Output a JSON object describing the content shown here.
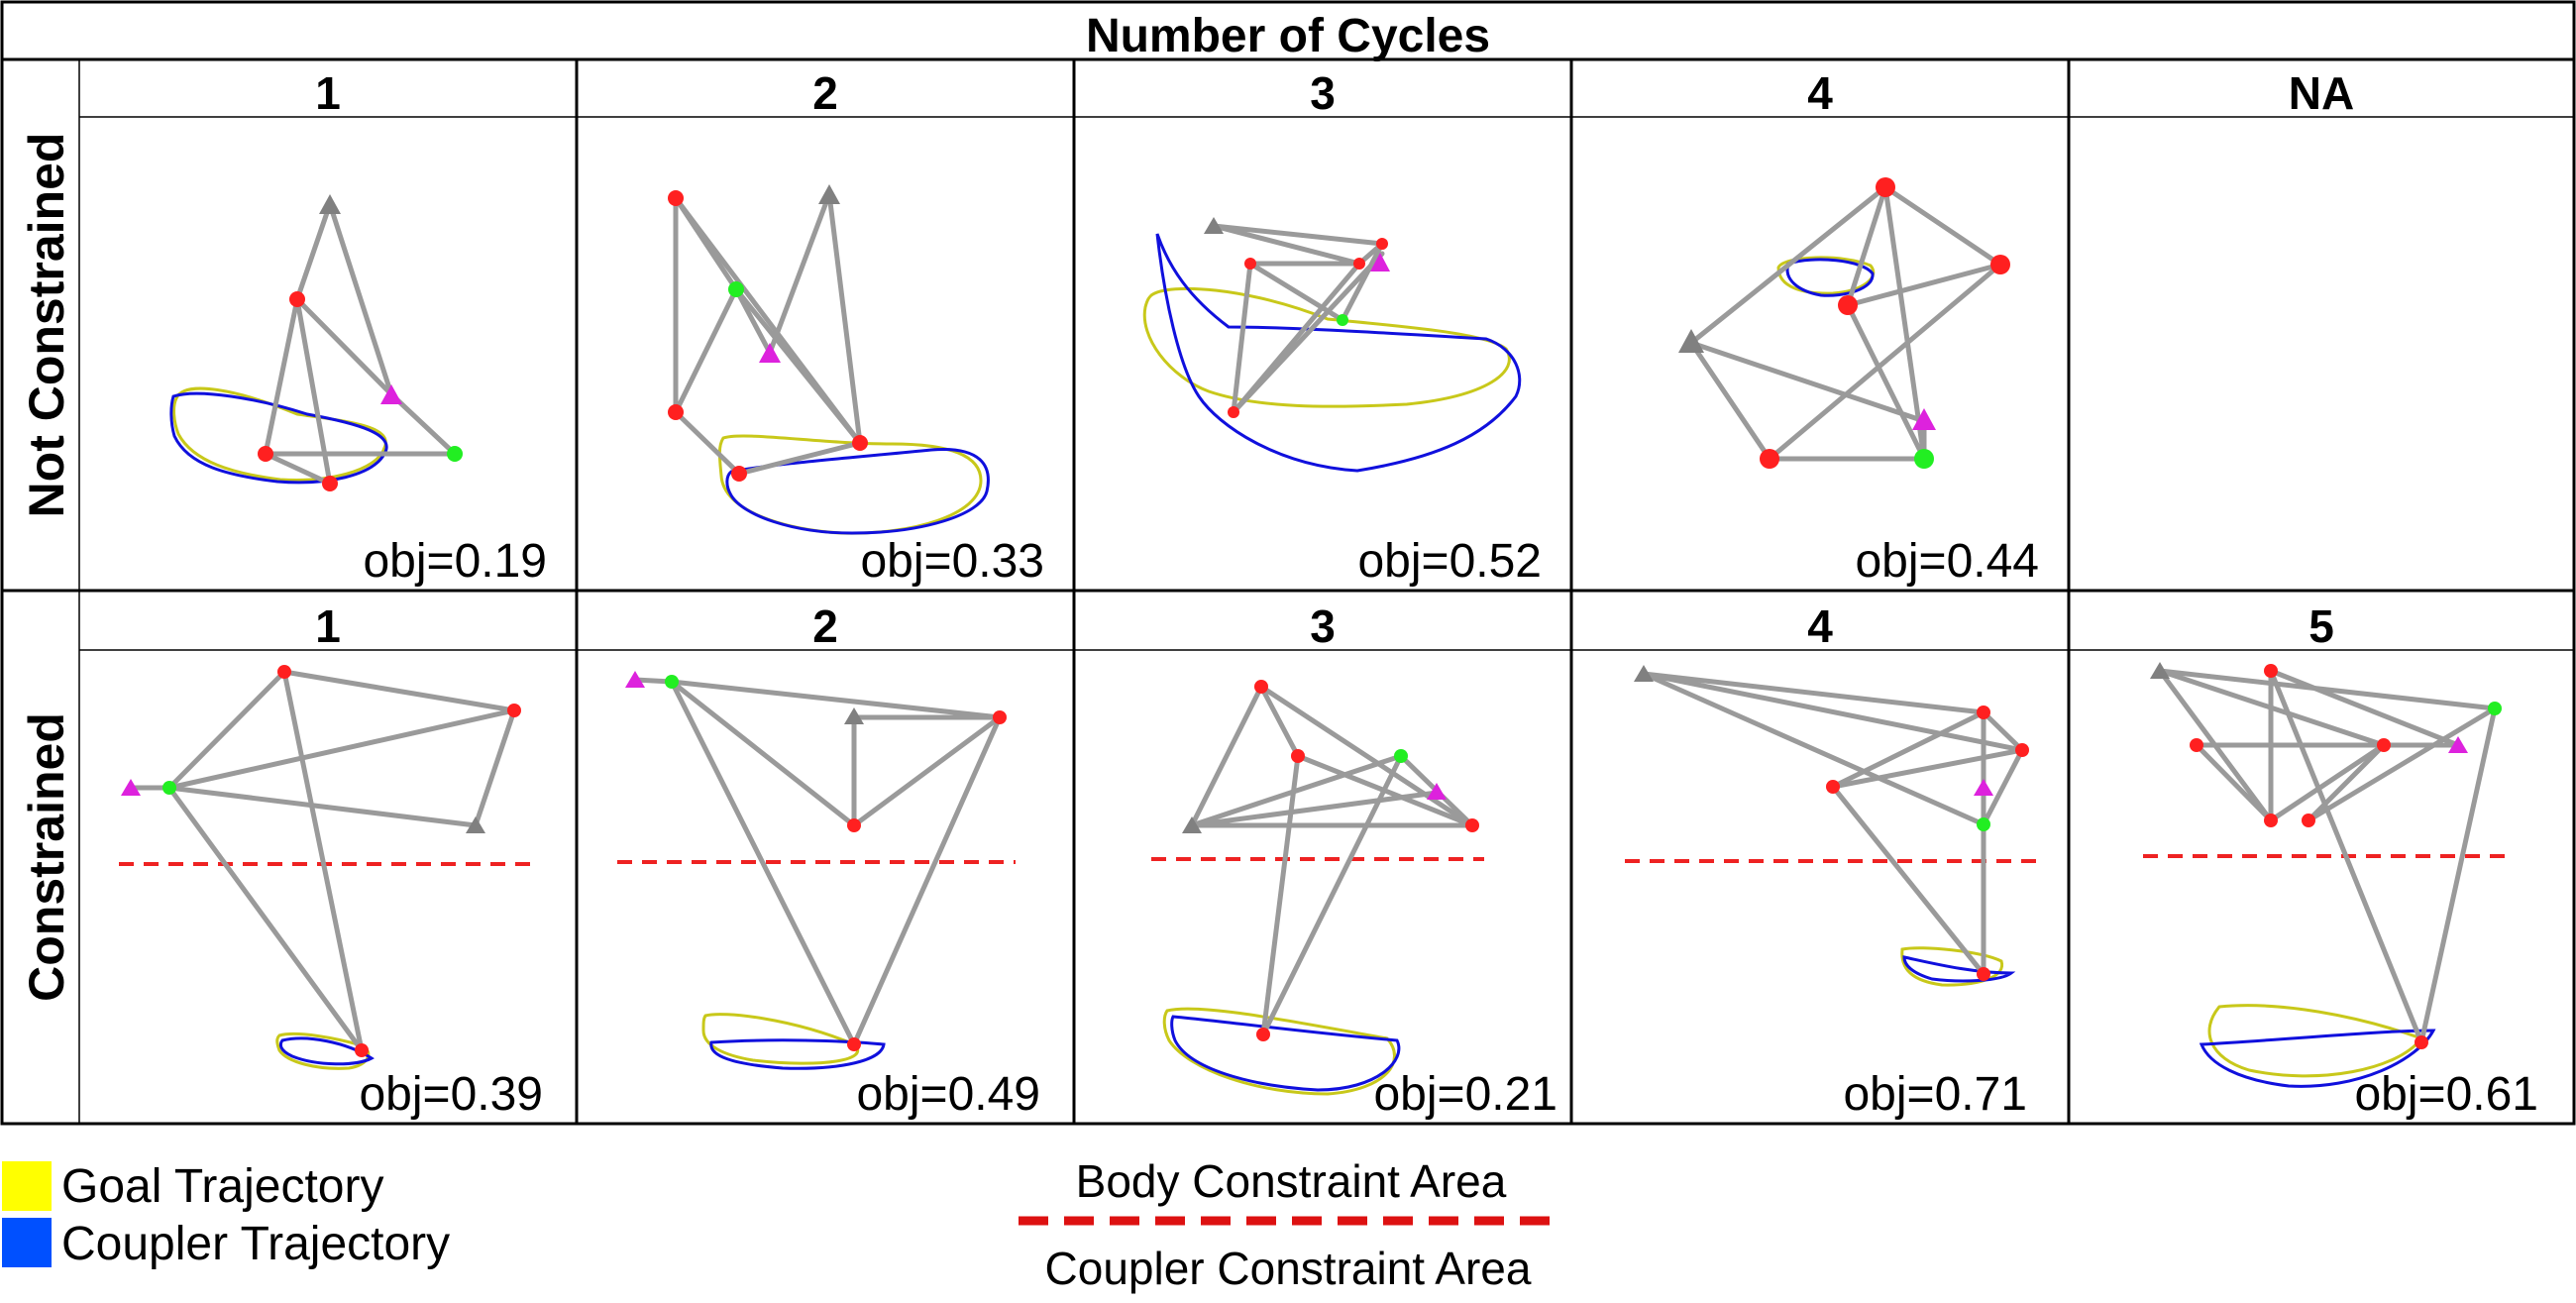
{
  "header": {
    "title": "Number of Cycles"
  },
  "rows": [
    {
      "label": "Not Constrained",
      "panels": [
        {
          "cycles": "1",
          "obj": "obj=0.19"
        },
        {
          "cycles": "2",
          "obj": "obj=0.33"
        },
        {
          "cycles": "3",
          "obj": "obj=0.52"
        },
        {
          "cycles": "4",
          "obj": "obj=0.44"
        },
        {
          "cycles": "NA",
          "obj": ""
        }
      ]
    },
    {
      "label": "Constrained",
      "panels": [
        {
          "cycles": "1",
          "obj": "obj=0.39"
        },
        {
          "cycles": "2",
          "obj": "obj=0.49"
        },
        {
          "cycles": "3",
          "obj": "obj=0.21"
        },
        {
          "cycles": "4",
          "obj": "obj=0.71"
        },
        {
          "cycles": "5",
          "obj": "obj=0.61"
        }
      ]
    }
  ],
  "legend": {
    "goal": "Goal Trajectory",
    "coupler": "Coupler Trajectory",
    "body_area": "Body Constraint Area",
    "coupler_area": "Coupler Constraint Area"
  },
  "colors": {
    "goal": "#ffff00",
    "coupler": "#0050ff",
    "goal_line": "#c8c81a",
    "coupler_line": "#1010dd",
    "joint": "#ff2020",
    "input": "#22ee22",
    "output": "#dd22dd",
    "ground": "#808080",
    "link": "#9a9a9a",
    "constraint": "#ee2222"
  }
}
